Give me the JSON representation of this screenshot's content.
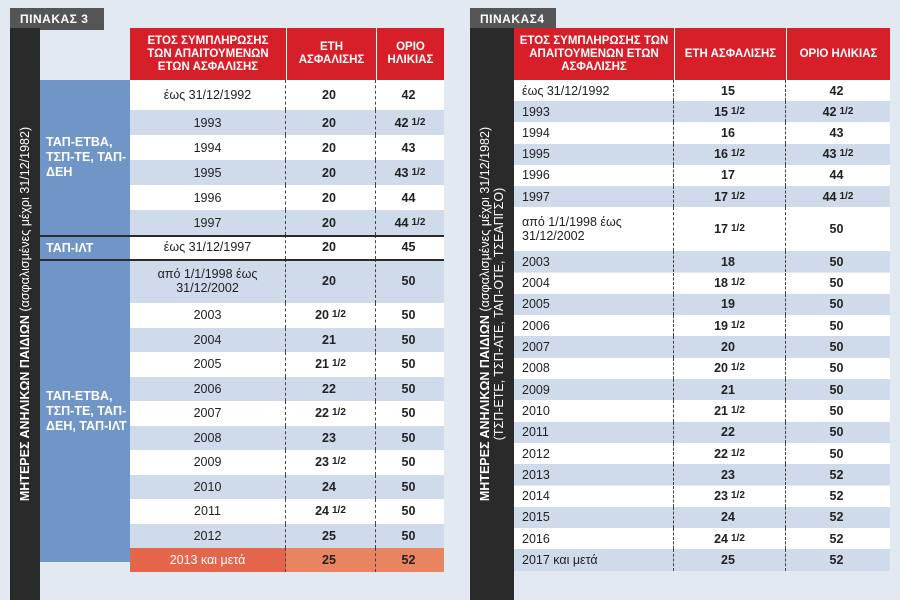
{
  "table3": {
    "tab_label": "ΠΙΝΑΚΑΣ 3",
    "side_main": "ΜΗΤΕΡΕΣ ΑΝΗΛΙΚΩΝ ΠΑΙΔΙΩΝ",
    "side_sub": "(ασφαλισμένες μέχρι 31/12/1982)",
    "headers": {
      "year": "ΕΤΟΣ ΣΥΜΠΛΗΡΩΣΗΣ ΤΩΝ ΑΠΑΙΤΟΥΜΕΝΩΝ ΕΤΩΝ ΑΣΦΑΛΙΣΗΣ",
      "years": "ΕΤΗ ΑΣΦΑΛΙΣΗΣ",
      "age": "ΟΡΙΟ ΗΛΙΚΙΑΣ"
    },
    "groups": [
      "ΤΑΠ-ΕΤΒΑ, ΤΣΠ-ΤΕ, ΤΑΠ-ΔΕΗ",
      "ΤΑΠ-ΙΛΤ",
      "ΤΑΠ-ΕΤΒΑ, ΤΣΠ-ΤΕ, ΤΑΠ-ΔΕΗ, ΤΑΠ-ΙΛΤ"
    ],
    "rows": [
      {
        "year": "έως 31/12/1992",
        "years": "20",
        "years_half": "",
        "age": "42",
        "age_half": ""
      },
      {
        "year": "1993",
        "years": "20",
        "years_half": "",
        "age": "42",
        "age_half": "1/2"
      },
      {
        "year": "1994",
        "years": "20",
        "years_half": "",
        "age": "43",
        "age_half": ""
      },
      {
        "year": "1995",
        "years": "20",
        "years_half": "",
        "age": "43",
        "age_half": "1/2"
      },
      {
        "year": "1996",
        "years": "20",
        "years_half": "",
        "age": "44",
        "age_half": ""
      },
      {
        "year": "1997",
        "years": "20",
        "years_half": "",
        "age": "44",
        "age_half": "1/2"
      },
      {
        "year": "έως 31/12/1997",
        "years": "20",
        "years_half": "",
        "age": "45",
        "age_half": ""
      },
      {
        "year": "από 1/1/1998 έως 31/12/2002",
        "years": "20",
        "years_half": "",
        "age": "50",
        "age_half": ""
      },
      {
        "year": "2003",
        "years": "20",
        "years_half": "1/2",
        "age": "50",
        "age_half": ""
      },
      {
        "year": "2004",
        "years": "21",
        "years_half": "",
        "age": "50",
        "age_half": ""
      },
      {
        "year": "2005",
        "years": "21",
        "years_half": "1/2",
        "age": "50",
        "age_half": ""
      },
      {
        "year": "2006",
        "years": "22",
        "years_half": "",
        "age": "50",
        "age_half": ""
      },
      {
        "year": "2007",
        "years": "22",
        "years_half": "1/2",
        "age": "50",
        "age_half": ""
      },
      {
        "year": "2008",
        "years": "23",
        "years_half": "",
        "age": "50",
        "age_half": ""
      },
      {
        "year": "2009",
        "years": "23",
        "years_half": "1/2",
        "age": "50",
        "age_half": ""
      },
      {
        "year": "2010",
        "years": "24",
        "years_half": "",
        "age": "50",
        "age_half": ""
      },
      {
        "year": "2011",
        "years": "24",
        "years_half": "1/2",
        "age": "50",
        "age_half": ""
      },
      {
        "year": "2012",
        "years": "25",
        "years_half": "",
        "age": "50",
        "age_half": ""
      },
      {
        "year": "2013 και μετά",
        "years": "25",
        "years_half": "",
        "age": "52",
        "age_half": ""
      }
    ]
  },
  "table4": {
    "tab_label": "ΠΙΝΑΚΑΣ4",
    "side_main": "ΜΗΤΕΡΕΣ ΑΝΗΛΙΚΩΝ ΠΑΙΔΙΩΝ",
    "side_sub1": "(ασφαλισμένες μέχρι 31/12/1982)",
    "side_sub2": "(ΤΣΠ-ΕΤΕ, ΤΣΠ-ΑΤΕ, ΤΑΠ-ΟΤΕ, ΤΣΕΑΠΓΣΟ)",
    "headers": {
      "year": "ΕΤΟΣ ΣΥΜΠΛΗΡΩΣΗΣ ΤΩΝ ΑΠΑΙΤΟΥΜΕΝΩΝ ΕΤΩΝ ΑΣΦΑΛΙΣΗΣ",
      "years": "ΕΤΗ ΑΣΦΑΛΙΣΗΣ",
      "age": "ΟΡΙΟ ΗΛΙΚΙΑΣ"
    },
    "rows": [
      {
        "year": "έως 31/12/1992",
        "years": "15",
        "years_half": "",
        "age": "42",
        "age_half": ""
      },
      {
        "year": "1993",
        "years": "15",
        "years_half": "1/2",
        "age": "42",
        "age_half": "1/2"
      },
      {
        "year": "1994",
        "years": "16",
        "years_half": "",
        "age": "43",
        "age_half": ""
      },
      {
        "year": "1995",
        "years": "16",
        "years_half": "1/2",
        "age": "43",
        "age_half": "1/2"
      },
      {
        "year": "1996",
        "years": "17",
        "years_half": "",
        "age": "44",
        "age_half": ""
      },
      {
        "year": "1997",
        "years": "17",
        "years_half": "1/2",
        "age": "44",
        "age_half": "1/2"
      },
      {
        "year": "από 1/1/1998 έως 31/12/2002",
        "years": "17",
        "years_half": "1/2",
        "age": "50",
        "age_half": ""
      },
      {
        "year": "2003",
        "years": "18",
        "years_half": "",
        "age": "50",
        "age_half": ""
      },
      {
        "year": "2004",
        "years": "18",
        "years_half": "1/2",
        "age": "50",
        "age_half": ""
      },
      {
        "year": "2005",
        "years": "19",
        "years_half": "",
        "age": "50",
        "age_half": ""
      },
      {
        "year": "2006",
        "years": "19",
        "years_half": "1/2",
        "age": "50",
        "age_half": ""
      },
      {
        "year": "2007",
        "years": "20",
        "years_half": "",
        "age": "50",
        "age_half": ""
      },
      {
        "year": "2008",
        "years": "20",
        "years_half": "1/2",
        "age": "50",
        "age_half": ""
      },
      {
        "year": "2009",
        "years": "21",
        "years_half": "",
        "age": "50",
        "age_half": ""
      },
      {
        "year": "2010",
        "years": "21",
        "years_half": "1/2",
        "age": "50",
        "age_half": ""
      },
      {
        "year": "2011",
        "years": "22",
        "years_half": "",
        "age": "50",
        "age_half": ""
      },
      {
        "year": "2012",
        "years": "22",
        "years_half": "1/2",
        "age": "50",
        "age_half": ""
      },
      {
        "year": "2013",
        "years": "23",
        "years_half": "",
        "age": "52",
        "age_half": ""
      },
      {
        "year": "2014",
        "years": "23",
        "years_half": "1/2",
        "age": "52",
        "age_half": ""
      },
      {
        "year": "2015",
        "years": "24",
        "years_half": "",
        "age": "52",
        "age_half": ""
      },
      {
        "year": "2016",
        "years": "24",
        "years_half": "1/2",
        "age": "52",
        "age_half": ""
      },
      {
        "year": "2017 και μετά",
        "years": "25",
        "years_half": "",
        "age": "52",
        "age_half": ""
      }
    ]
  },
  "colors": {
    "header_red": "#d71f2a",
    "group_blue": "#6f96c7",
    "row_light": "#ffffff",
    "row_alt": "#cfdbea",
    "highlight_row": "#e98461",
    "highlight_cell": "#e5654a"
  }
}
